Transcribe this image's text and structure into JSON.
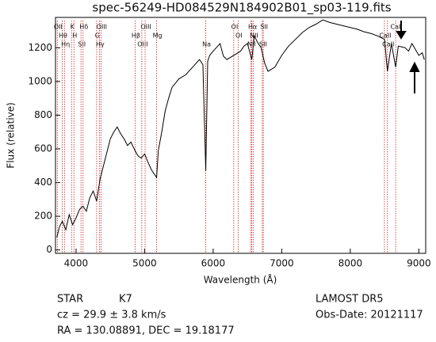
{
  "chart_data": {
    "type": "line",
    "title": "spec-56249-HD084529N184902B01_sp03-119.fits",
    "xlabel": "Wavelength (Å)",
    "ylabel": "Flux (relative)",
    "x": [
      3720,
      3760,
      3800,
      3850,
      3900,
      3950,
      4000,
      4050,
      4100,
      4150,
      4200,
      4250,
      4300,
      4350,
      4400,
      4450,
      4500,
      4550,
      4600,
      4650,
      4700,
      4750,
      4800,
      4860,
      4900,
      4950,
      5000,
      5050,
      5100,
      5175,
      5200,
      5250,
      5300,
      5350,
      5400,
      5450,
      5500,
      5600,
      5700,
      5800,
      5850,
      5892,
      5920,
      5950,
      6000,
      6100,
      6150,
      6200,
      6300,
      6400,
      6450,
      6500,
      6563,
      6600,
      6650,
      6700,
      6750,
      6800,
      6900,
      7000,
      7100,
      7200,
      7300,
      7400,
      7500,
      7600,
      7700,
      7800,
      7900,
      8000,
      8100,
      8200,
      8300,
      8400,
      8500,
      8542,
      8600,
      8662,
      8700,
      8800,
      8850,
      8900,
      8950,
      9000,
      9050,
      9080
    ],
    "series": [
      {
        "name": "Flux",
        "color": "#000000",
        "values": [
          75,
          140,
          170,
          120,
          210,
          150,
          190,
          240,
          260,
          230,
          310,
          350,
          290,
          420,
          500,
          580,
          660,
          700,
          730,
          690,
          660,
          620,
          640,
          590,
          560,
          545,
          570,
          520,
          475,
          430,
          590,
          700,
          825,
          900,
          965,
          990,
          1015,
          1040,
          1085,
          1130,
          1100,
          470,
          1120,
          1155,
          1180,
          1225,
          1150,
          1130,
          1155,
          1180,
          1210,
          1225,
          1130,
          1270,
          1230,
          1200,
          1110,
          1060,
          1085,
          1155,
          1210,
          1250,
          1290,
          1320,
          1340,
          1365,
          1350,
          1340,
          1330,
          1320,
          1310,
          1295,
          1285,
          1270,
          1250,
          1060,
          1225,
          1085,
          1210,
          1200,
          1180,
          1225,
          1190,
          1155,
          1170,
          1130
        ]
      }
    ],
    "xlim": [
      3700,
      9100
    ],
    "ylim": [
      -20,
      1380
    ],
    "xticks": [
      4000,
      5000,
      6000,
      7000,
      8000,
      9000
    ],
    "yticks": [
      0,
      200,
      400,
      600,
      800,
      1000,
      1200
    ],
    "annotations": [
      {
        "x": 3727,
        "label": "OII"
      },
      {
        "x": 3798,
        "label": "Hθ"
      },
      {
        "x": 3835,
        "label": "Hη"
      },
      {
        "x": 3934,
        "label": "K"
      },
      {
        "x": 3969,
        "label": "H"
      },
      {
        "x": 4072,
        "label": "SII"
      },
      {
        "x": 4102,
        "label": "Hδ"
      },
      {
        "x": 4300,
        "label": "G"
      },
      {
        "x": 4340,
        "label": "Hγ"
      },
      {
        "x": 4363,
        "label": "OIII"
      },
      {
        "x": 4861,
        "label": "Hβ"
      },
      {
        "x": 4959,
        "label": "OIII"
      },
      {
        "x": 5007,
        "label": "OIII"
      },
      {
        "x": 5175,
        "label": "Mg"
      },
      {
        "x": 5892,
        "label": "Na"
      },
      {
        "x": 6300,
        "label": "OI"
      },
      {
        "x": 6364,
        "label": "OI"
      },
      {
        "x": 6548,
        "label": "NII"
      },
      {
        "x": 6563,
        "label": "Hα"
      },
      {
        "x": 6583,
        "label": "NII"
      },
      {
        "x": 6717,
        "label": "SII"
      },
      {
        "x": 6731,
        "label": "SII"
      },
      {
        "x": 8498,
        "label": "CaII"
      },
      {
        "x": 8542,
        "label": "CaII"
      },
      {
        "x": 8662,
        "label": "CaII"
      }
    ],
    "annotation_color": "#cc2222",
    "object_class": "STAR",
    "subclass": "K7",
    "redshift_text": "cz = 29.9 ± 3.8 km/s",
    "coordinates": "RA = 130.08891, DEC =  19.18177",
    "survey": "LAMOST DR5",
    "obs_date": "Obs-Date: 20121117"
  }
}
